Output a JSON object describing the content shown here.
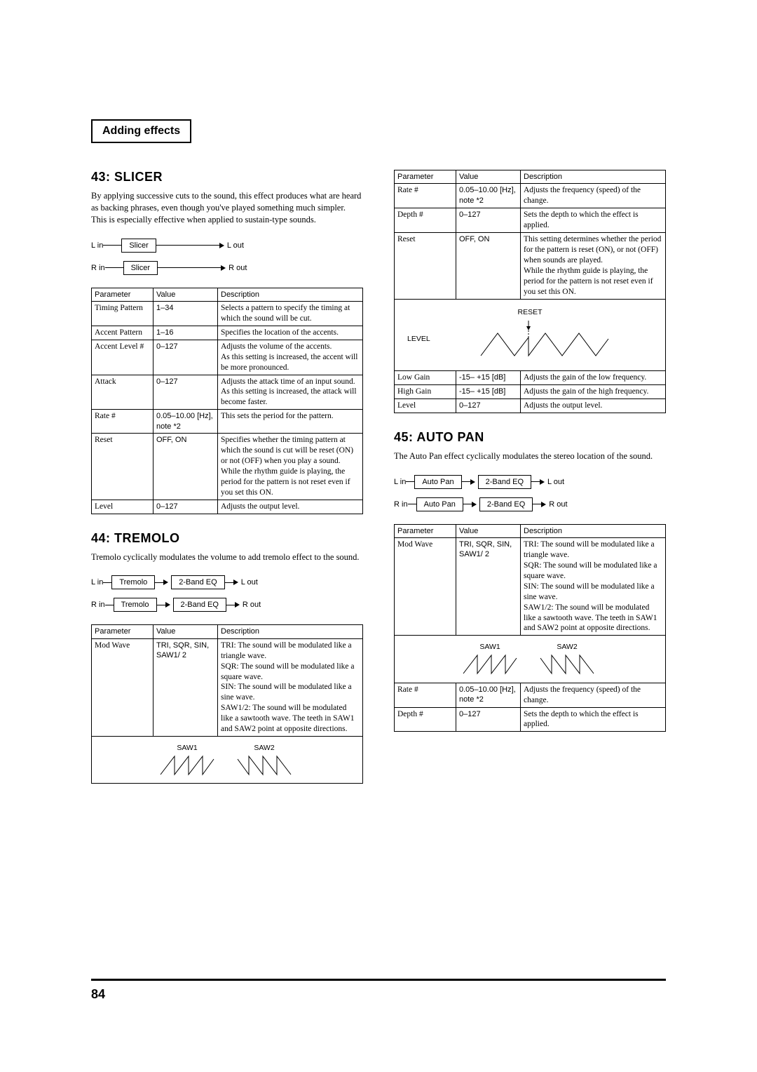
{
  "header": {
    "title": "Adding effects"
  },
  "page_number": "84",
  "left": {
    "slicer": {
      "title": "43: SLICER",
      "desc": "By applying successive cuts to the sound, this effect produces what are heard as backing phrases, even though you've played something much simpler. This is especially effective when applied to sustain-type sounds.",
      "chain": {
        "l": {
          "in": "L in",
          "box1": "Slicer",
          "out": "L out"
        },
        "r": {
          "in": "R in",
          "box1": "Slicer",
          "out": "R out"
        }
      },
      "headers": {
        "p": "Parameter",
        "v": "Value",
        "d": "Description"
      },
      "rows": [
        {
          "p": "Timing Pattern",
          "v": "1–34",
          "d": "Selects a pattern to specify the timing at which the sound will be cut."
        },
        {
          "p": "Accent Pattern",
          "v": "1–16",
          "d": "Specifies the location of the accents."
        },
        {
          "p": "Accent Level #",
          "v": "0–127",
          "d": "Adjusts the volume of the accents.\nAs this setting is increased, the accent will be more pronounced."
        },
        {
          "p": "Attack",
          "v": "0–127",
          "d": "Adjusts the attack time of an input sound.\nAs this setting is increased, the attack will become faster."
        },
        {
          "p": "Rate #",
          "v": "0.05–10.00 [Hz], note *2",
          "d": "This sets the period for the pattern."
        },
        {
          "p": "Reset",
          "v": "OFF, ON",
          "d": "Specifies whether the timing pattern at which the sound is cut will be reset (ON) or not (OFF) when you play a sound.\nWhile the rhythm guide is playing, the period for the pattern is not reset even if you set this ON."
        },
        {
          "p": "Level",
          "v": "0–127",
          "d": "Adjusts the output level."
        }
      ]
    },
    "tremolo": {
      "title": "44: TREMOLO",
      "desc": "Tremolo cyclically modulates the volume to add tremolo effect to the sound.",
      "chain": {
        "l": {
          "in": "L in",
          "box1": "Tremolo",
          "box2": "2-Band EQ",
          "out": "L out"
        },
        "r": {
          "in": "R in",
          "box1": "Tremolo",
          "box2": "2-Band EQ",
          "out": "R out"
        }
      },
      "headers": {
        "p": "Parameter",
        "v": "Value",
        "d": "Description"
      },
      "rows": [
        {
          "p": "Mod Wave",
          "v": "TRI, SQR, SIN, SAW1/ 2",
          "d": "TRI: The sound will be modulated like a triangle wave.\nSQR: The sound will be modulated like a square wave.\nSIN: The sound will be modulated like a sine wave.\nSAW1/2: The sound will be modulated like a sawtooth wave. The teeth in SAW1 and SAW2 point at opposite directions."
        }
      ],
      "saw": {
        "l1": "SAW1",
        "l2": "SAW2"
      }
    }
  },
  "right": {
    "cont": {
      "headers": {
        "p": "Parameter",
        "v": "Value",
        "d": "Description"
      },
      "rows1": [
        {
          "p": "Rate #",
          "v": "0.05–10.00 [Hz], note *2",
          "d": "Adjusts the frequency (speed) of the change."
        },
        {
          "p": "Depth #",
          "v": "0–127",
          "d": "Sets the depth to which the effect is applied."
        },
        {
          "p": "Reset",
          "v": "OFF, ON",
          "d": "This setting determines whether the period for the pattern is reset (ON), or not (OFF) when sounds are played.\nWhile the rhythm guide is playing, the period for the pattern is not reset even if you set this ON."
        }
      ],
      "reset_diag": {
        "top": "RESET",
        "left": "LEVEL"
      },
      "rows2": [
        {
          "p": "Low Gain",
          "v": "-15– +15 [dB]",
          "d": "Adjusts the gain of the low frequency."
        },
        {
          "p": "High Gain",
          "v": "-15– +15 [dB]",
          "d": "Adjusts the gain of the high frequency."
        },
        {
          "p": "Level",
          "v": "0–127",
          "d": "Adjusts the output level."
        }
      ]
    },
    "autopan": {
      "title": "45: AUTO PAN",
      "desc": "The Auto Pan effect cyclically modulates the stereo location of the sound.",
      "chain": {
        "l": {
          "in": "L in",
          "box1": "Auto Pan",
          "box2": "2-Band EQ",
          "out": "L out"
        },
        "r": {
          "in": "R in",
          "box1": "Auto Pan",
          "box2": "2-Band EQ",
          "out": "R out"
        }
      },
      "headers": {
        "p": "Parameter",
        "v": "Value",
        "d": "Description"
      },
      "rows1": [
        {
          "p": "Mod Wave",
          "v": "TRI, SQR, SIN, SAW1/ 2",
          "d": "TRI: The sound will be modulated like a triangle wave.\nSQR: The sound will be modulated like a square wave.\nSIN: The sound will be modulated like a sine wave.\nSAW1/2: The sound will be modulated like a sawtooth wave. The teeth in SAW1 and SAW2 point at opposite directions."
        }
      ],
      "saw": {
        "l1": "SAW1",
        "l2": "SAW2"
      },
      "rows2": [
        {
          "p": "Rate #",
          "v": "0.05–10.00 [Hz], note *2",
          "d": "Adjusts the frequency (speed) of the change."
        },
        {
          "p": "Depth #",
          "v": "0–127",
          "d": "Sets the depth to which the effect is applied."
        }
      ]
    }
  }
}
